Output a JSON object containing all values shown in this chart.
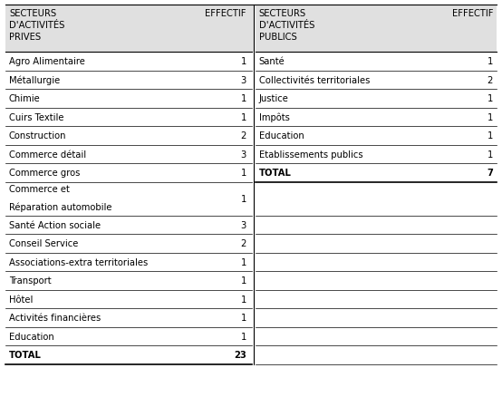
{
  "left_header_col1": "SECTEURS\nD'ACTIVITÉS\nPRIVES",
  "left_header_col2": "EFFECTIF",
  "right_header_col1": "SECTEURS\nD'ACTIVITÉS\nPUBLICS",
  "right_header_col2": "EFFECTIF",
  "left_rows": [
    {
      "label": "Agro Alimentaire",
      "value": "1",
      "multiline": false
    },
    {
      "label": "Métallurgie",
      "value": "3",
      "multiline": false
    },
    {
      "label": "Chimie",
      "value": "1",
      "multiline": false
    },
    {
      "label": "Cuirs Textile",
      "value": "1",
      "multiline": false
    },
    {
      "label": "Construction",
      "value": "2",
      "multiline": false
    },
    {
      "label": "Commerce détail",
      "value": "3",
      "multiline": false
    },
    {
      "label": "Commerce gros",
      "value": "1",
      "multiline": false
    },
    {
      "label": "Commerce et\nRéparation automobile",
      "value": "1",
      "multiline": true
    },
    {
      "label": "Santé Action sociale",
      "value": "3",
      "multiline": false
    },
    {
      "label": "Conseil Service",
      "value": "2",
      "multiline": false
    },
    {
      "label": "Associations-extra territoriales",
      "value": "1",
      "multiline": false
    },
    {
      "label": "Transport",
      "value": "1",
      "multiline": false
    },
    {
      "label": "Hôtel",
      "value": "1",
      "multiline": false
    },
    {
      "label": "Activités financières",
      "value": "1",
      "multiline": false
    },
    {
      "label": "Education",
      "value": "1",
      "multiline": false
    },
    {
      "label": "TOTAL",
      "value": "23",
      "multiline": false,
      "bold": true
    }
  ],
  "right_rows": [
    {
      "label": "Santé",
      "value": "1",
      "multiline": false
    },
    {
      "label": "Collectivités territoriales",
      "value": "2",
      "multiline": false
    },
    {
      "label": "Justice",
      "value": "1",
      "multiline": false
    },
    {
      "label": "Impôts",
      "value": "1",
      "multiline": false
    },
    {
      "label": "Education",
      "value": "1",
      "multiline": false
    },
    {
      "label": "Etablissements publics",
      "value": "1",
      "multiline": false
    },
    {
      "label": "TOTAL",
      "value": "7",
      "multiline": false,
      "bold": true
    }
  ],
  "header_bg": "#e0e0e0",
  "fig_bg": "#ffffff",
  "font_size": 7.2,
  "header_font_size": 7.2,
  "fig_width": 5.54,
  "fig_height": 4.39,
  "dpi": 100
}
